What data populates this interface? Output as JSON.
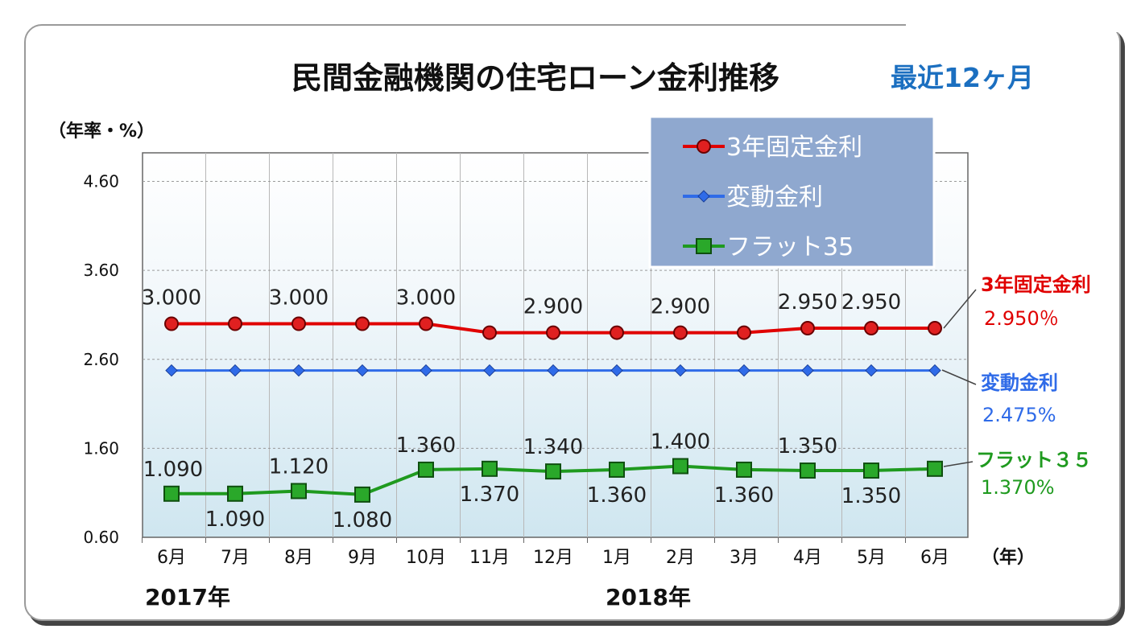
{
  "title": "民間金融機関の住宅ローン金利推移",
  "subtitle": "最近12ヶ月",
  "y_unit_label": "（年率・%）",
  "x_unit_label": "（年）",
  "year_labels": [
    "2017年",
    "2018年"
  ],
  "colors": {
    "fixed3": "#e00000",
    "variable": "#2f6be8",
    "flat35": "#1f9a1f",
    "legend_bg": "#8fa8cf"
  },
  "end_labels": [
    {
      "name": "3年固定金利",
      "value": "2.950％"
    },
    {
      "name": "変動金利",
      "value": "2.475%"
    },
    {
      "name": "フラット３５",
      "value": "1.370%"
    }
  ],
  "chart_data": {
    "type": "line",
    "categories": [
      "6月",
      "7月",
      "8月",
      "9月",
      "10月",
      "11月",
      "12月",
      "1月",
      "2月",
      "3月",
      "4月",
      "5月",
      "6月"
    ],
    "y_ticks": [
      "0.60",
      "1.60",
      "2.60",
      "3.60",
      "4.60"
    ],
    "ylim": [
      0.6,
      4.6
    ],
    "grid": true,
    "legend_position": "top-right",
    "series": [
      {
        "name": "3年固定金利",
        "values": [
          3.0,
          3.0,
          3.0,
          3.0,
          3.0,
          2.9,
          2.9,
          2.9,
          2.9,
          2.9,
          2.95,
          2.95,
          2.95
        ],
        "labels": [
          "3.000",
          "",
          "3.000",
          "",
          "3.000",
          "",
          "2.900",
          "",
          "2.900",
          "",
          "2.950",
          "2.950",
          ""
        ],
        "marker": "circle"
      },
      {
        "name": "変動金利",
        "values": [
          2.475,
          2.475,
          2.475,
          2.475,
          2.475,
          2.475,
          2.475,
          2.475,
          2.475,
          2.475,
          2.475,
          2.475,
          2.475
        ],
        "labels": [
          "",
          "",
          "",
          "",
          "",
          "",
          "",
          "",
          "",
          "",
          "",
          "",
          ""
        ],
        "marker": "diamond"
      },
      {
        "name": "フラット35",
        "values": [
          1.09,
          1.09,
          1.12,
          1.08,
          1.36,
          1.37,
          1.34,
          1.36,
          1.4,
          1.36,
          1.35,
          1.35,
          1.37
        ],
        "labels": [
          "1.090",
          "1.090",
          "1.120",
          "1.080",
          "1.360",
          "1.370",
          "1.340",
          "1.360",
          "1.400",
          "1.360",
          "1.350",
          "1.350",
          ""
        ],
        "marker": "square"
      }
    ]
  }
}
